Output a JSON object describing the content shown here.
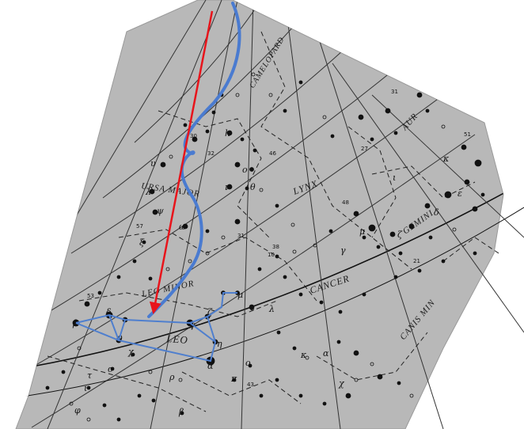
{
  "constellations": [
    {
      "name": "URSA MAJOR"
    },
    {
      "name": "LYNX"
    },
    {
      "name": "GEMINI"
    },
    {
      "name": "CANCER"
    },
    {
      "name": "LEO"
    },
    {
      "name": "LEO MINOR"
    },
    {
      "name": "CAMELOPARD"
    },
    {
      "name": "AUR"
    },
    {
      "name": "CANIS MIN"
    }
  ],
  "colors": {
    "map_background": "#b8b8b8",
    "ink": "#111111",
    "red_arrow": "#e8141b",
    "blue_curve": "#4a7bd0",
    "leo_asterism": "#4f7fce"
  },
  "leo_star_labels": [
    "β",
    "δ",
    "θ",
    "γ",
    "ζ",
    "μ",
    "ε",
    "λ",
    "η",
    "α",
    "ρ",
    "ο",
    "π",
    "κ",
    "χ",
    "σ",
    "ι"
  ],
  "other_star_labels": [
    "h",
    "υ",
    "ο",
    "ψ",
    "ω",
    "ν",
    "ξ",
    "λ",
    "μ",
    "ι",
    "κ",
    "θ",
    "δ",
    "ε",
    "ζ",
    "γ",
    "α",
    "β",
    "φ",
    "χ",
    "τ"
  ],
  "flamsteed_numbers": [
    "57",
    "38",
    "10",
    "30",
    "32",
    "31",
    "46",
    "27",
    "53",
    "48",
    "31",
    "51",
    "21",
    "43"
  ],
  "icons": [
    "red-arrow-icon",
    "blue-curve-icon"
  ]
}
